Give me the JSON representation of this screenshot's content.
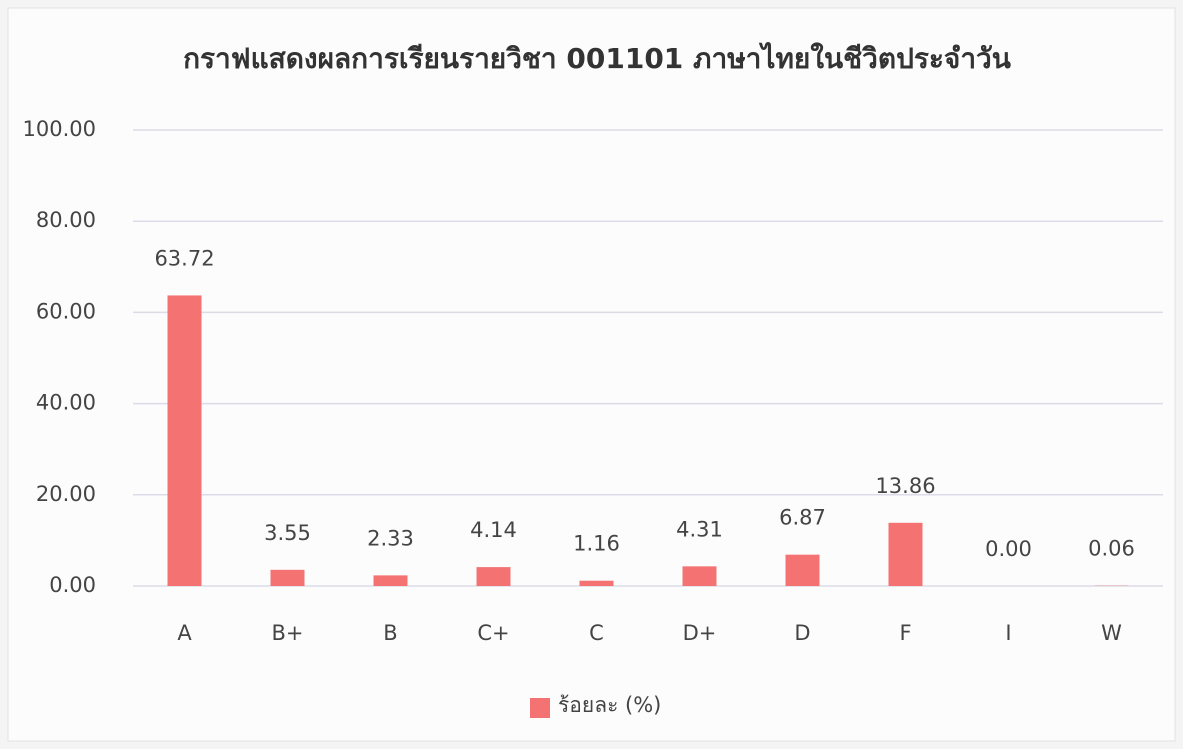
{
  "chart_data": {
    "type": "bar",
    "title": "กราฟแสดงผลการเรียนรายวิชา 001101 ภาษาไทยในชีวิตประจำวัน",
    "categories": [
      "A",
      "B+",
      "B",
      "C+",
      "C",
      "D+",
      "D",
      "F",
      "I",
      "W"
    ],
    "series": [
      {
        "name": "ร้อยละ (%)",
        "color": "#f47272",
        "values": [
          63.72,
          3.55,
          2.33,
          4.14,
          1.16,
          4.31,
          6.87,
          13.86,
          0,
          0.06
        ],
        "value_labels": [
          "63.72",
          "3.55",
          "2.33",
          "4.14",
          "1.16",
          "4.31",
          "6.87",
          "13.86",
          "0.00",
          "0.06"
        ]
      }
    ],
    "ylim": [
      0,
      100
    ],
    "yticks": [
      {
        "value": 0,
        "label": "0.00"
      },
      {
        "value": 20,
        "label": "20.00"
      },
      {
        "value": 40,
        "label": "40.00"
      },
      {
        "value": 60,
        "label": "60.00"
      },
      {
        "value": 80,
        "label": "80.00"
      },
      {
        "value": 100,
        "label": "100.00"
      }
    ],
    "grid": true,
    "legend": "bottom"
  }
}
